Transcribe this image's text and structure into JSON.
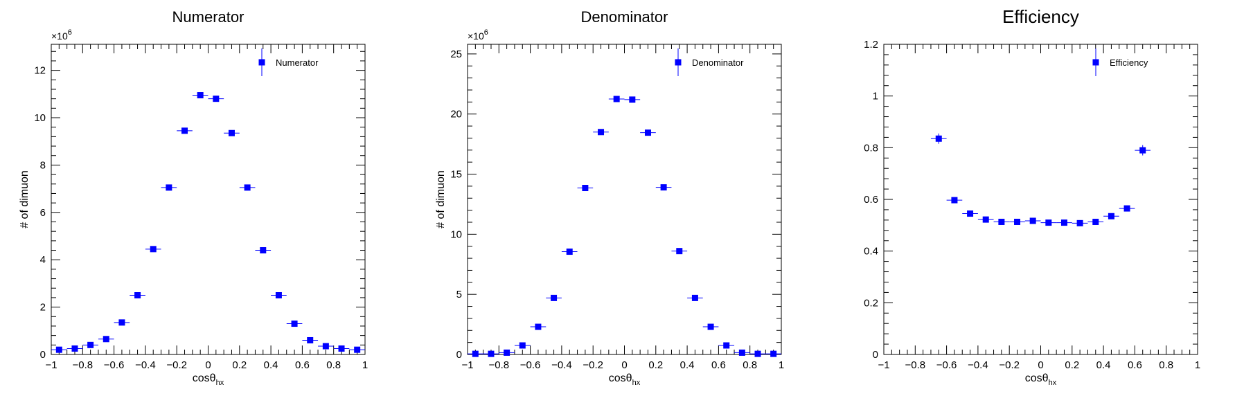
{
  "colors": {
    "marker": "#0000ff",
    "axis": "#000000"
  },
  "chart_data": [
    {
      "type": "scatter",
      "title": "Numerator",
      "xlabel": "cosθ",
      "xlabel_sub": "hx",
      "ylabel": "# of dimuon",
      "y_exponent": "×10",
      "y_exponent_power": "6",
      "xlim": [
        -1,
        1
      ],
      "ylim": [
        0,
        13.1
      ],
      "grid": false,
      "legend_position": "top-right",
      "series": [
        {
          "name": "Numerator",
          "x_halfwidth": 0.05,
          "x": [
            -0.95,
            -0.85,
            -0.75,
            -0.65,
            -0.55,
            -0.45,
            -0.35,
            -0.25,
            -0.15,
            -0.05,
            0.05,
            0.15,
            0.25,
            0.35,
            0.45,
            0.55,
            0.65,
            0.75,
            0.85,
            0.95
          ],
          "y": [
            0.2,
            0.25,
            0.4,
            0.65,
            1.35,
            2.5,
            4.45,
            7.05,
            9.45,
            10.95,
            10.8,
            9.35,
            7.05,
            4.4,
            2.5,
            1.3,
            0.6,
            0.35,
            0.25,
            0.2
          ]
        }
      ],
      "xticks": [
        -1,
        -0.8,
        -0.6,
        -0.4,
        -0.2,
        0,
        0.2,
        0.4,
        0.6,
        0.8,
        1
      ],
      "xtick_labels": [
        "−1",
        "−0.8",
        "−0.6",
        "−0.4",
        "−0.2",
        "0",
        "0.2",
        "0.4",
        "0.6",
        "0.8",
        "1"
      ],
      "yticks": [
        0,
        2,
        4,
        6,
        8,
        10,
        12
      ],
      "ytick_labels": [
        "0",
        "2",
        "4",
        "6",
        "8",
        "10",
        "12"
      ]
    },
    {
      "type": "scatter",
      "title": "Denominator",
      "xlabel": "cosθ",
      "xlabel_sub": "hx",
      "ylabel": "# of dimuon",
      "y_exponent": "×10",
      "y_exponent_power": "6",
      "xlim": [
        -1,
        1
      ],
      "ylim": [
        0,
        25.8
      ],
      "grid": false,
      "legend_position": "top-right",
      "series": [
        {
          "name": "Denominator",
          "x_halfwidth": 0.05,
          "x": [
            -0.95,
            -0.85,
            -0.75,
            -0.65,
            -0.55,
            -0.45,
            -0.35,
            -0.25,
            -0.15,
            -0.05,
            0.05,
            0.15,
            0.25,
            0.35,
            0.45,
            0.55,
            0.65,
            0.75,
            0.85,
            0.95
          ],
          "y": [
            0.05,
            0.05,
            0.15,
            0.75,
            2.3,
            4.7,
            8.55,
            13.85,
            18.5,
            21.25,
            21.2,
            18.45,
            13.9,
            8.6,
            4.7,
            2.3,
            0.75,
            0.15,
            0.05,
            0.05
          ]
        }
      ],
      "xticks": [
        -1,
        -0.8,
        -0.6,
        -0.4,
        -0.2,
        0,
        0.2,
        0.4,
        0.6,
        0.8,
        1
      ],
      "xtick_labels": [
        "−1",
        "−0.8",
        "−0.6",
        "−0.4",
        "−0.2",
        "0",
        "0.2",
        "0.4",
        "0.6",
        "0.8",
        "1"
      ],
      "yticks": [
        0,
        5,
        10,
        15,
        20,
        25
      ],
      "ytick_labels": [
        "0",
        "5",
        "10",
        "15",
        "20",
        "25"
      ]
    },
    {
      "type": "scatter",
      "title": "Efficiency",
      "xlabel": "cosθ",
      "xlabel_sub": "hx",
      "ylabel": "",
      "y_exponent": "",
      "y_exponent_power": "",
      "xlim": [
        -1,
        1
      ],
      "ylim": [
        0,
        1.2
      ],
      "grid": false,
      "legend_position": "top-right",
      "series": [
        {
          "name": "Efficiency",
          "x_halfwidth": 0.05,
          "x": [
            -0.65,
            -0.55,
            -0.45,
            -0.35,
            -0.25,
            -0.15,
            -0.05,
            0.05,
            0.15,
            0.25,
            0.35,
            0.45,
            0.55,
            0.65
          ],
          "y": [
            0.835,
            0.597,
            0.545,
            0.522,
            0.513,
            0.513,
            0.517,
            0.51,
            0.51,
            0.508,
            0.513,
            0.535,
            0.565,
            0.79
          ],
          "y_err": [
            0.02,
            0.008,
            0.006,
            0.005,
            0.004,
            0.004,
            0.004,
            0.004,
            0.004,
            0.004,
            0.005,
            0.006,
            0.008,
            0.02
          ]
        }
      ],
      "xticks": [
        -1,
        -0.8,
        -0.6,
        -0.4,
        -0.2,
        0,
        0.2,
        0.4,
        0.6,
        0.8,
        1
      ],
      "xtick_labels": [
        "−1",
        "−0.8",
        "−0.6",
        "−0.4",
        "−0.2",
        "0",
        "0.2",
        "0.4",
        "0.6",
        "0.8",
        "1"
      ],
      "yticks": [
        0,
        0.2,
        0.4,
        0.6,
        0.8,
        1,
        1.2
      ],
      "ytick_labels": [
        "0",
        "0.2",
        "0.4",
        "0.6",
        "0.8",
        "1",
        "1.2"
      ]
    }
  ]
}
